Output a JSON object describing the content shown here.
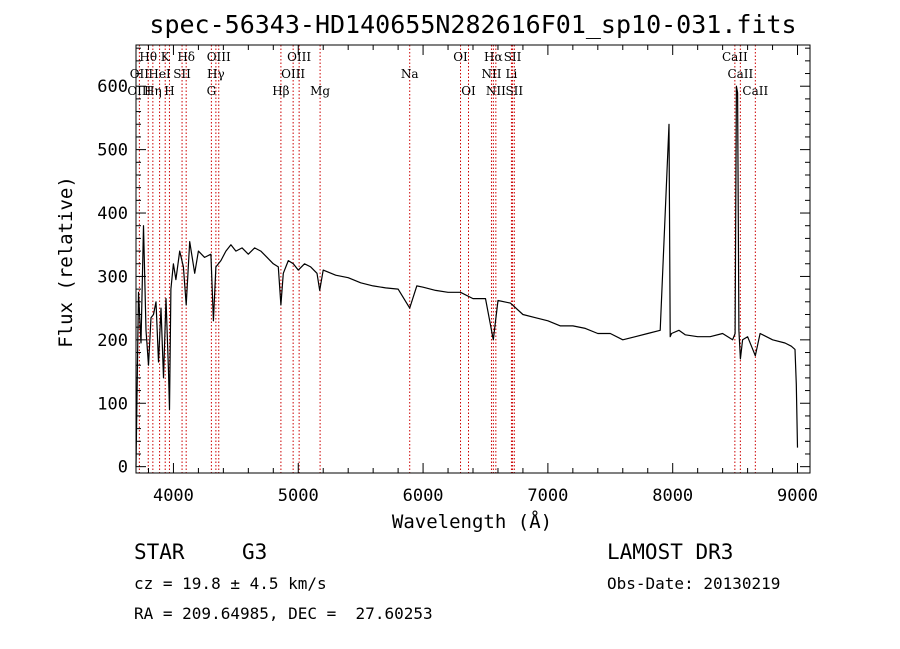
{
  "chart_data": {
    "type": "line",
    "title": "spec-56343-HD140655N282616F01_sp10-031.fits",
    "xlabel": "Wavelength (Å)",
    "ylabel": "Flux (relative)",
    "xlim": [
      3700,
      9100
    ],
    "ylim": [
      -10,
      665
    ],
    "xticks": [
      4000,
      5000,
      6000,
      7000,
      8000,
      9000
    ],
    "yticks": [
      0,
      100,
      200,
      300,
      400,
      500,
      600
    ],
    "series": [
      {
        "name": "spectrum",
        "x": [
          3700,
          3720,
          3740,
          3760,
          3780,
          3800,
          3820,
          3840,
          3860,
          3880,
          3900,
          3920,
          3940,
          3960,
          3968,
          3980,
          4000,
          4020,
          4050,
          4080,
          4102,
          4130,
          4170,
          4200,
          4250,
          4300,
          4320,
          4340,
          4380,
          4420,
          4460,
          4500,
          4550,
          4600,
          4650,
          4700,
          4750,
          4800,
          4840,
          4861,
          4880,
          4920,
          4960,
          5000,
          5050,
          5100,
          5150,
          5172,
          5200,
          5300,
          5400,
          5500,
          5600,
          5700,
          5800,
          5893,
          5950,
          6000,
          6100,
          6200,
          6300,
          6400,
          6500,
          6563,
          6600,
          6700,
          6800,
          6900,
          7000,
          7100,
          7200,
          7300,
          7400,
          7500,
          7600,
          7700,
          7800,
          7900,
          7970,
          7980,
          7990,
          8050,
          8100,
          8200,
          8300,
          8400,
          8480,
          8500,
          8510,
          8520,
          8530,
          8542,
          8560,
          8600,
          8662,
          8700,
          8800,
          8900,
          8950,
          8980,
          8990,
          9000
        ],
        "y": [
          0,
          275,
          195,
          380,
          215,
          160,
          235,
          240,
          260,
          165,
          250,
          140,
          265,
          150,
          90,
          280,
          320,
          295,
          340,
          315,
          255,
          355,
          305,
          340,
          330,
          335,
          230,
          315,
          325,
          340,
          350,
          340,
          345,
          335,
          345,
          340,
          330,
          320,
          315,
          255,
          305,
          325,
          320,
          310,
          320,
          315,
          305,
          278,
          310,
          302,
          298,
          290,
          285,
          282,
          280,
          250,
          285,
          283,
          278,
          275,
          275,
          265,
          265,
          200,
          262,
          258,
          240,
          235,
          230,
          222,
          222,
          218,
          210,
          210,
          200,
          205,
          210,
          215,
          540,
          205,
          210,
          215,
          208,
          205,
          205,
          210,
          200,
          210,
          600,
          590,
          215,
          170,
          200,
          205,
          175,
          210,
          200,
          195,
          190,
          185,
          130,
          30
        ]
      }
    ],
    "spectral_lines": [
      {
        "label": "Hθ",
        "x": 3798,
        "row": 1
      },
      {
        "label": "OII",
        "x": 3727,
        "row": 2
      },
      {
        "label": "OIII",
        "x": 3727,
        "row": 3
      },
      {
        "label": "K",
        "x": 3934,
        "row": 1
      },
      {
        "label": "HeI",
        "x": 3889,
        "row": 2
      },
      {
        "label": "Hη",
        "x": 3835,
        "row": 3
      },
      {
        "label": "Hδ",
        "x": 4102,
        "row": 1
      },
      {
        "label": "SII",
        "x": 4069,
        "row": 2
      },
      {
        "label": "H",
        "x": 3968,
        "row": 3
      },
      {
        "label": "OIII",
        "x": 4363,
        "row": 1
      },
      {
        "label": "Hγ",
        "x": 4340,
        "row": 2
      },
      {
        "label": "G",
        "x": 4304,
        "row": 3
      },
      {
        "label": "OIII",
        "x": 5007,
        "row": 1
      },
      {
        "label": "OIII",
        "x": 4959,
        "row": 2
      },
      {
        "label": "Hβ",
        "x": 4861,
        "row": 3
      },
      {
        "label": "Mg",
        "x": 5175,
        "row": 3
      },
      {
        "label": "Na",
        "x": 5893,
        "row": 2
      },
      {
        "label": "OI",
        "x": 6300,
        "row": 1
      },
      {
        "label": "OI",
        "x": 6364,
        "row": 3
      },
      {
        "label": "Hα",
        "x": 6563,
        "row": 1
      },
      {
        "label": "SII",
        "x": 6717,
        "row": 1
      },
      {
        "label": "NII",
        "x": 6548,
        "row": 2
      },
      {
        "label": "Li",
        "x": 6708,
        "row": 2
      },
      {
        "label": "NII",
        "x": 6583,
        "row": 3
      },
      {
        "label": "SII",
        "x": 6731,
        "row": 3
      },
      {
        "label": "CaII",
        "x": 8498,
        "row": 1
      },
      {
        "label": "CaII",
        "x": 8542,
        "row": 2
      },
      {
        "label": "CaII",
        "x": 8662,
        "row": 3
      }
    ]
  },
  "info": {
    "class": "STAR",
    "subclass": "G3",
    "survey": "LAMOST DR3",
    "cz": "cz = 19.8 ± 4.5 km/s",
    "obs_date": "Obs-Date: 20130219",
    "coords": "RA = 209.64985, DEC =  27.60253"
  },
  "colors": {
    "line_marker": "#cc0000",
    "spectrum": "#000000",
    "axis": "#000000"
  }
}
